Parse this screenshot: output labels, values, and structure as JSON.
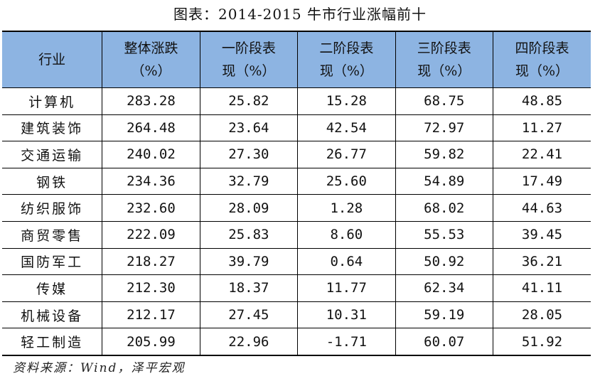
{
  "title": "图表：2014-2015 牛市行业涨幅前十",
  "table": {
    "headers": [
      {
        "line1": "行业",
        "line2": ""
      },
      {
        "line1": "整体涨跌",
        "line2": "（%）"
      },
      {
        "line1": "一阶段表",
        "line2": "现（%）"
      },
      {
        "line1": "二阶段表",
        "line2": "现（%）"
      },
      {
        "line1": "三阶段表",
        "line2": "现（%）"
      },
      {
        "line1": "四阶段表",
        "line2": "现（%）"
      }
    ],
    "rows": [
      [
        "计算机",
        "283.28",
        "25.82",
        "15.28",
        "68.75",
        "48.85"
      ],
      [
        "建筑装饰",
        "264.48",
        "23.64",
        "42.54",
        "72.97",
        "11.27"
      ],
      [
        "交通运输",
        "240.02",
        "27.30",
        "26.77",
        "59.82",
        "22.41"
      ],
      [
        "钢铁",
        "234.36",
        "32.79",
        "25.60",
        "54.89",
        "17.49"
      ],
      [
        "纺织服饰",
        "232.60",
        "28.09",
        "1.28",
        "68.02",
        "44.63"
      ],
      [
        "商贸零售",
        "222.09",
        "25.83",
        "8.60",
        "55.53",
        "39.45"
      ],
      [
        "国防军工",
        "218.27",
        "39.79",
        "0.64",
        "50.92",
        "36.21"
      ],
      [
        "传媒",
        "212.30",
        "18.37",
        "11.77",
        "62.34",
        "41.11"
      ],
      [
        "机械设备",
        "212.17",
        "27.45",
        "10.31",
        "59.19",
        "28.05"
      ],
      [
        "轻工制造",
        "205.99",
        "22.96",
        "-1.71",
        "60.07",
        "51.92"
      ]
    ]
  },
  "source": "资料来源：Wind，泽平宏观",
  "colors": {
    "header_bg": "#8db4e2",
    "border": "#000000"
  }
}
